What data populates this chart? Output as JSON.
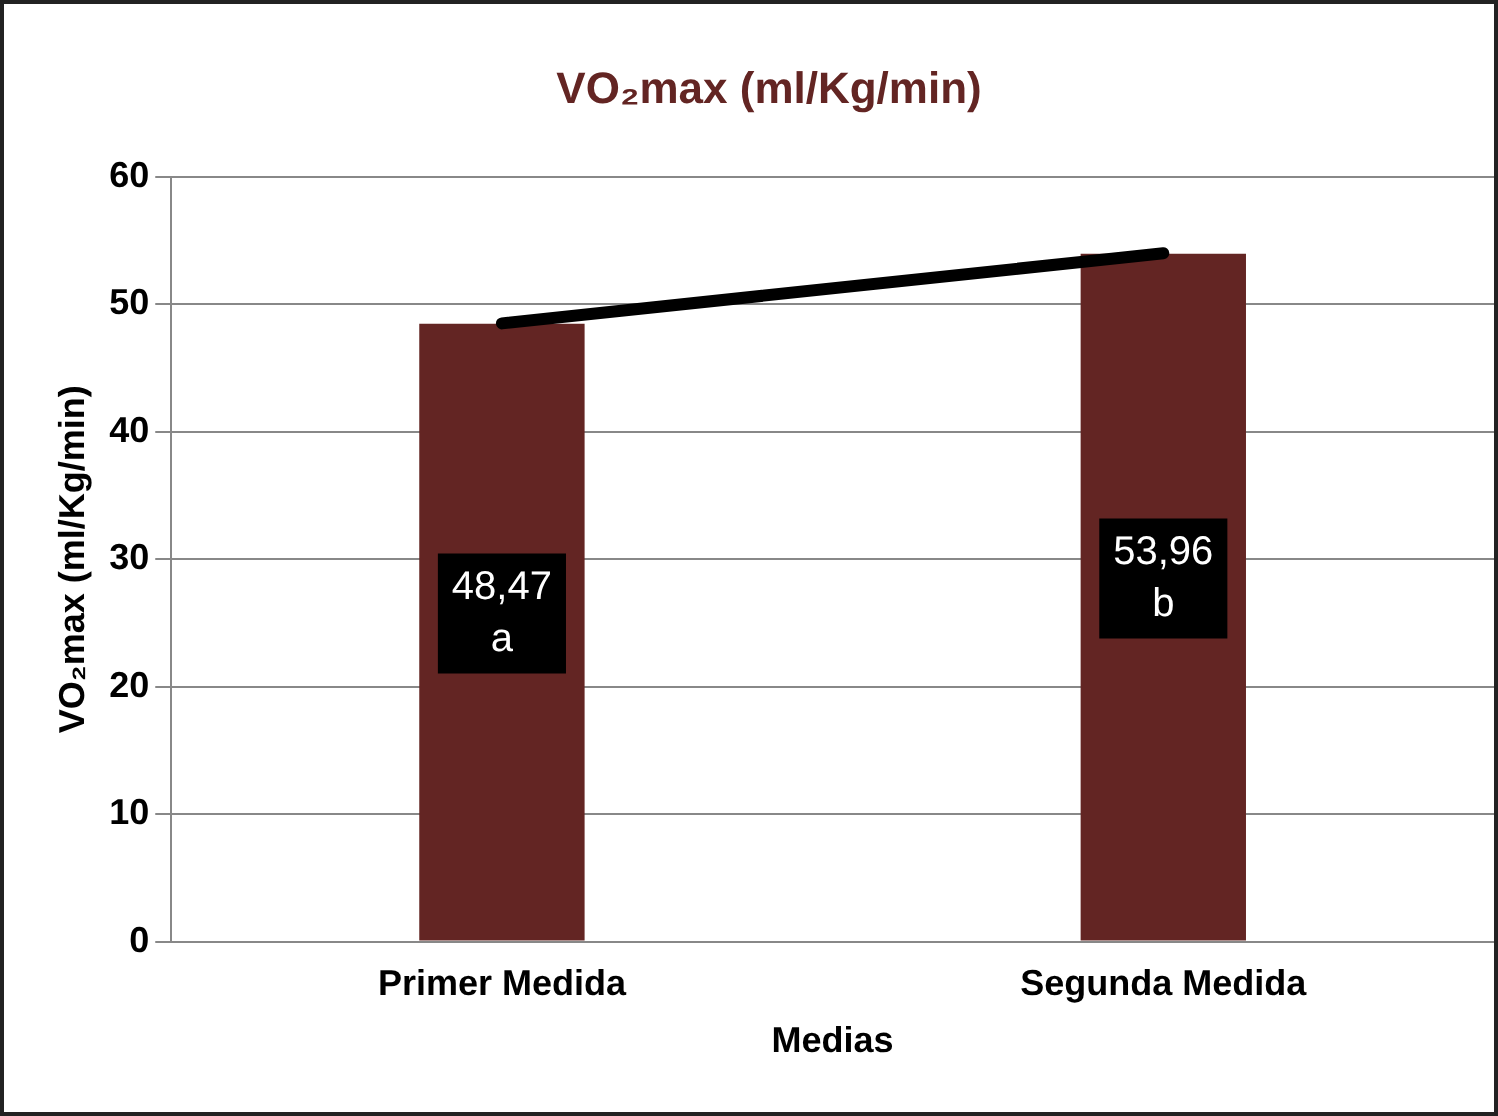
{
  "chart_data": {
    "type": "bar",
    "title": "VO₂max (ml/Kg/min)",
    "xlabel": "Medias",
    "ylabel": "VO₂max (ml/Kg/min)",
    "categories": [
      "Primer Medida",
      "Segunda Medida"
    ],
    "series": [
      {
        "color": "#632523",
        "values": [
          48.47,
          53.96
        ],
        "value_labels": [
          "48,47\na",
          "53,96\nb"
        ]
      },
      {
        "type": "line",
        "color": "#000000",
        "values": [
          48.5,
          54
        ]
      }
    ],
    "ylim": [
      0,
      60
    ],
    "yticks": [
      0,
      10,
      20,
      30,
      40,
      50,
      60
    ],
    "grid": "y",
    "legend": false,
    "marker": "none"
  }
}
